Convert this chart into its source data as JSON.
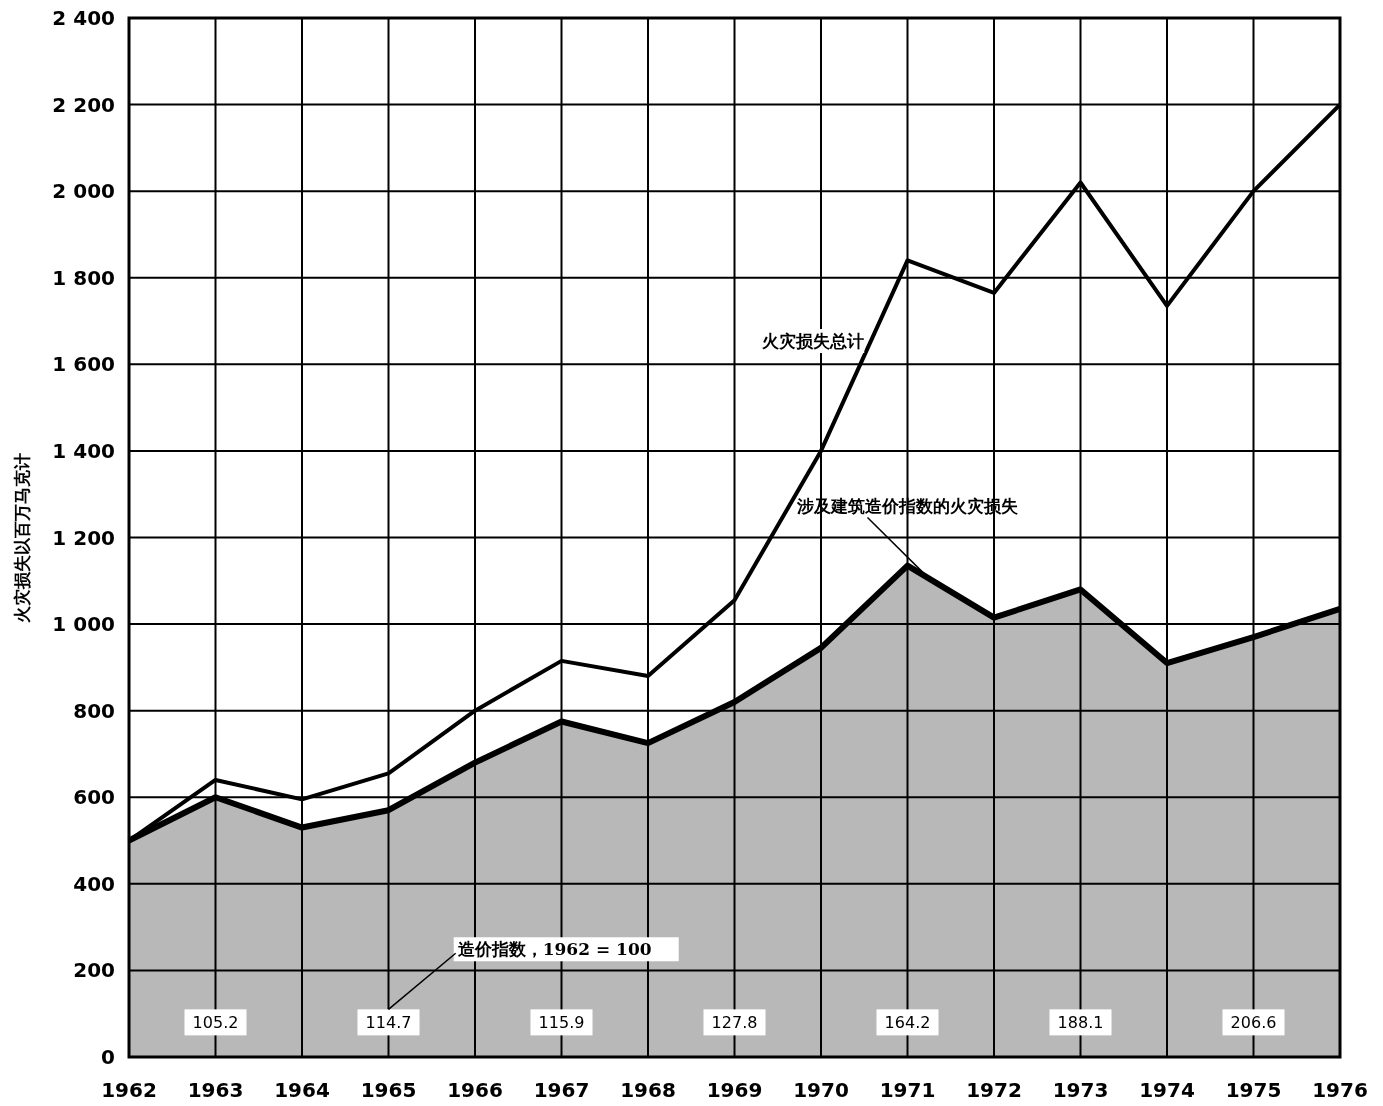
{
  "chart_data": {
    "type": "line",
    "ylabel": "火灾损失以百万马克计",
    "x": [
      1962,
      1963,
      1964,
      1965,
      1966,
      1967,
      1968,
      1969,
      1970,
      1971,
      1972,
      1973,
      1974,
      1975,
      1976
    ],
    "series": [
      {
        "name": "火灾损失总计",
        "color": "#000000",
        "values": [
          500,
          640,
          595,
          655,
          800,
          915,
          880,
          1055,
          1400,
          1840,
          1765,
          2020,
          1735,
          2000,
          2200
        ]
      },
      {
        "name": "涉及建筑造价指数的火灾损失",
        "type": "area",
        "color": "#b8b8b8",
        "values": [
          500,
          600,
          530,
          570,
          680,
          775,
          725,
          820,
          945,
          1135,
          1015,
          1080,
          910,
          970,
          1035
        ]
      }
    ],
    "xlim": [
      1962,
      1976
    ],
    "xticks": [
      1962,
      1963,
      1964,
      1965,
      1966,
      1967,
      1968,
      1969,
      1970,
      1971,
      1972,
      1973,
      1974,
      1975,
      1976
    ],
    "ylim": [
      0,
      2400
    ],
    "yticks": [
      0,
      200,
      400,
      600,
      800,
      {
        "value": 1000,
        "label": "1 000"
      },
      {
        "value": 1200,
        "label": "1 200"
      },
      {
        "value": 1400,
        "label": "1 400"
      },
      {
        "value": 1600,
        "label": "1 600"
      },
      {
        "value": 1800,
        "label": "1 800"
      },
      {
        "value": 2000,
        "label": "2 000"
      },
      {
        "value": 2200,
        "label": "2 200"
      },
      {
        "value": 2400,
        "label": "2 400"
      }
    ],
    "grid": true,
    "legend": false,
    "marker": "none",
    "line_style": "solid",
    "annotations": [
      "105.2",
      "114.7",
      "115.9",
      "127.8",
      "164.2",
      "188.1",
      "206.6",
      "造价指数，1962 = 100"
    ]
  }
}
